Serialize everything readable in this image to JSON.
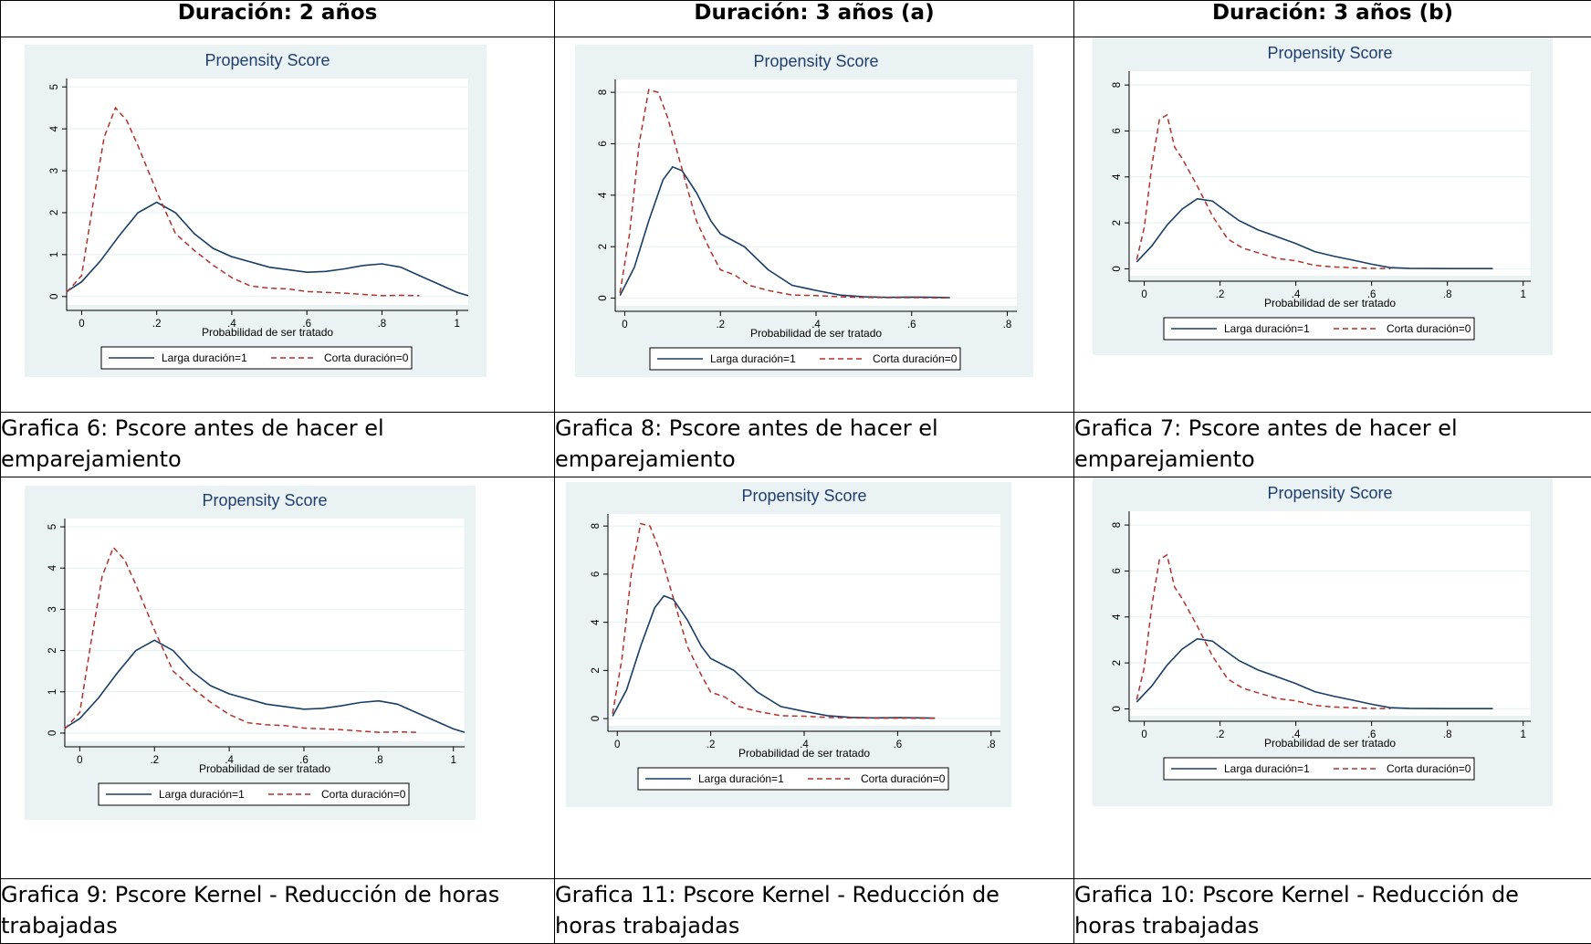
{
  "columns": [
    "Duración: 2 años",
    "Duración: 3 años (a)",
    "Duración: 3 años (b)"
  ],
  "captions": [
    [
      "Grafica 6: Pscore antes de hacer el",
      "emparejamiento"
    ],
    [
      "Grafica 8: Pscore antes de hacer el",
      "emparejamiento"
    ],
    [
      "Grafica 7: Pscore antes de hacer el",
      "emparejamiento"
    ],
    [
      "Grafica 9: Pscore Kernel - Reducción de horas",
      "trabajadas"
    ],
    [
      "Grafica 11: Pscore Kernel - Reducción de",
      "horas trabajadas"
    ],
    [
      "Grafica 10: Pscore Kernel - Reducción de",
      "horas trabajadas"
    ]
  ],
  "colors": {
    "series1": "#1a3d66",
    "series0": "#b0312b",
    "plot_background": "#eaf2f3",
    "title": "#1f3f6e"
  },
  "chart_data": [
    {
      "type": "line",
      "title": "Propensity Score",
      "xlabel": "Probabilidad de ser tratado",
      "ylabel": "",
      "xlim": [
        -0.04,
        1.03
      ],
      "ylim": [
        -0.2,
        5.2
      ],
      "xticks": [
        0,
        0.2,
        0.4,
        0.6,
        0.8,
        1
      ],
      "xtick_labels": [
        "0",
        ".2",
        ".4",
        ".6",
        ".8",
        "1"
      ],
      "yticks": [
        0,
        1,
        2,
        3,
        4,
        5
      ],
      "ytick_labels": [
        "0",
        "1",
        "2",
        "3",
        "4",
        "5"
      ],
      "legend_position": "bottom",
      "series": [
        {
          "name": "Larga duración=1",
          "style": "solid",
          "x": [
            -0.04,
            0,
            0.05,
            0.1,
            0.15,
            0.2,
            0.25,
            0.3,
            0.35,
            0.4,
            0.5,
            0.6,
            0.65,
            0.7,
            0.75,
            0.8,
            0.85,
            0.9,
            0.95,
            1.0,
            1.03
          ],
          "y": [
            0.12,
            0.35,
            0.85,
            1.45,
            2.0,
            2.25,
            2.0,
            1.5,
            1.15,
            0.95,
            0.7,
            0.58,
            0.6,
            0.66,
            0.74,
            0.78,
            0.7,
            0.5,
            0.3,
            0.1,
            0.02
          ]
        },
        {
          "name": "Corta duración=0",
          "style": "dashed",
          "x": [
            -0.04,
            0,
            0.03,
            0.06,
            0.09,
            0.12,
            0.15,
            0.2,
            0.25,
            0.3,
            0.35,
            0.4,
            0.45,
            0.5,
            0.55,
            0.6,
            0.65,
            0.7,
            0.75,
            0.8,
            0.85,
            0.9
          ],
          "y": [
            0.1,
            0.5,
            2.2,
            3.8,
            4.5,
            4.2,
            3.6,
            2.5,
            1.5,
            1.1,
            0.75,
            0.45,
            0.25,
            0.2,
            0.18,
            0.12,
            0.1,
            0.08,
            0.05,
            0.02,
            0.03,
            0.02
          ]
        }
      ]
    },
    {
      "type": "line",
      "title": "Propensity Score",
      "xlabel": "Probabilidad de ser tratado",
      "ylabel": "",
      "xlim": [
        -0.02,
        0.82
      ],
      "ylim": [
        -0.3,
        8.5
      ],
      "xticks": [
        0,
        0.2,
        0.4,
        0.6,
        0.8
      ],
      "xtick_labels": [
        "0",
        ".2",
        ".4",
        ".6",
        ".8"
      ],
      "yticks": [
        0,
        2,
        4,
        6,
        8
      ],
      "ytick_labels": [
        "0",
        "2",
        "4",
        "6",
        "8"
      ],
      "legend_position": "bottom",
      "series": [
        {
          "name": "Larga duración=1",
          "style": "solid",
          "x": [
            -0.01,
            0.02,
            0.05,
            0.08,
            0.1,
            0.12,
            0.15,
            0.18,
            0.2,
            0.25,
            0.3,
            0.35,
            0.4,
            0.45,
            0.5,
            0.55,
            0.6,
            0.65,
            0.68
          ],
          "y": [
            0.1,
            1.2,
            3.0,
            4.6,
            5.1,
            4.95,
            4.1,
            3.0,
            2.5,
            2.0,
            1.1,
            0.5,
            0.3,
            0.12,
            0.05,
            0.03,
            0.04,
            0.03,
            0.02
          ]
        },
        {
          "name": "Corta duración=0",
          "style": "dashed",
          "x": [
            -0.01,
            0.01,
            0.03,
            0.05,
            0.07,
            0.09,
            0.12,
            0.15,
            0.18,
            0.2,
            0.23,
            0.26,
            0.3,
            0.35,
            0.4,
            0.45,
            0.5,
            0.55,
            0.6,
            0.68
          ],
          "y": [
            0.2,
            2.5,
            6.0,
            8.1,
            8.0,
            7.0,
            5.0,
            3.0,
            1.8,
            1.1,
            0.9,
            0.5,
            0.3,
            0.12,
            0.1,
            0.05,
            0.03,
            0.02,
            0.02,
            0.01
          ]
        }
      ]
    },
    {
      "type": "line",
      "title": "Propensity Score",
      "xlabel": "Probabilidad de ser tratado",
      "ylabel": "",
      "xlim": [
        -0.04,
        1.02
      ],
      "ylim": [
        -0.3,
        8.6
      ],
      "xticks": [
        0,
        0.2,
        0.4,
        0.6,
        0.8,
        1
      ],
      "xtick_labels": [
        "0",
        ".2",
        ".4",
        ".6",
        ".8",
        "1"
      ],
      "yticks": [
        0,
        2,
        4,
        6,
        8
      ],
      "ytick_labels": [
        "0",
        "2",
        "4",
        "6",
        "8"
      ],
      "legend_position": "bottom",
      "series": [
        {
          "name": "Larga duración=1",
          "style": "solid",
          "x": [
            -0.02,
            0.02,
            0.06,
            0.1,
            0.14,
            0.18,
            0.2,
            0.25,
            0.3,
            0.35,
            0.4,
            0.45,
            0.5,
            0.55,
            0.6,
            0.65,
            0.7,
            0.8,
            0.92
          ],
          "y": [
            0.3,
            1.0,
            1.9,
            2.6,
            3.05,
            2.95,
            2.7,
            2.1,
            1.7,
            1.4,
            1.1,
            0.75,
            0.55,
            0.38,
            0.2,
            0.05,
            0.02,
            0.01,
            0.01
          ]
        },
        {
          "name": "Corta duración=0",
          "style": "dashed",
          "x": [
            -0.02,
            0.0,
            0.02,
            0.04,
            0.06,
            0.08,
            0.1,
            0.14,
            0.18,
            0.22,
            0.26,
            0.3,
            0.35,
            0.4,
            0.45,
            0.5,
            0.55,
            0.6,
            0.65
          ],
          "y": [
            0.4,
            1.8,
            4.5,
            6.5,
            6.7,
            5.3,
            4.8,
            3.6,
            2.3,
            1.3,
            0.9,
            0.7,
            0.45,
            0.35,
            0.15,
            0.08,
            0.05,
            0.02,
            0.01
          ]
        }
      ]
    },
    {
      "type": "line",
      "title": "Propensity Score",
      "xlabel": "Probabilidad de ser tratado",
      "ylabel": "",
      "xlim": [
        -0.04,
        1.03
      ],
      "ylim": [
        -0.2,
        5.2
      ],
      "xticks": [
        0,
        0.2,
        0.4,
        0.6,
        0.8,
        1
      ],
      "xtick_labels": [
        "0",
        ".2",
        ".4",
        ".6",
        ".8",
        "1"
      ],
      "yticks": [
        0,
        1,
        2,
        3,
        4,
        5
      ],
      "ytick_labels": [
        "0",
        "1",
        "2",
        "3",
        "4",
        "5"
      ],
      "legend_position": "bottom",
      "series": [
        {
          "name": "Larga duración=1",
          "style": "solid",
          "x": [
            -0.04,
            0,
            0.05,
            0.1,
            0.15,
            0.2,
            0.25,
            0.3,
            0.35,
            0.4,
            0.5,
            0.6,
            0.65,
            0.7,
            0.75,
            0.8,
            0.85,
            0.9,
            0.95,
            1.0,
            1.03
          ],
          "y": [
            0.12,
            0.35,
            0.85,
            1.45,
            2.0,
            2.25,
            2.0,
            1.5,
            1.15,
            0.95,
            0.7,
            0.58,
            0.6,
            0.66,
            0.74,
            0.78,
            0.7,
            0.5,
            0.3,
            0.1,
            0.02
          ]
        },
        {
          "name": "Corta duración=0",
          "style": "dashed",
          "x": [
            -0.04,
            0,
            0.03,
            0.06,
            0.09,
            0.12,
            0.15,
            0.2,
            0.25,
            0.3,
            0.35,
            0.4,
            0.45,
            0.5,
            0.55,
            0.6,
            0.65,
            0.7,
            0.75,
            0.8,
            0.85,
            0.9
          ],
          "y": [
            0.1,
            0.5,
            2.2,
            3.8,
            4.5,
            4.2,
            3.6,
            2.5,
            1.5,
            1.1,
            0.75,
            0.45,
            0.25,
            0.2,
            0.18,
            0.12,
            0.1,
            0.08,
            0.05,
            0.02,
            0.03,
            0.02
          ]
        }
      ]
    },
    {
      "type": "line",
      "title": "Propensity Score",
      "xlabel": "Probabilidad de ser tratado",
      "ylabel": "",
      "xlim": [
        -0.02,
        0.82
      ],
      "ylim": [
        -0.3,
        8.5
      ],
      "xticks": [
        0,
        0.2,
        0.4,
        0.6,
        0.8
      ],
      "xtick_labels": [
        "0",
        ".2",
        ".4",
        ".6",
        ".8"
      ],
      "yticks": [
        0,
        2,
        4,
        6,
        8
      ],
      "ytick_labels": [
        "0",
        "2",
        "4",
        "6",
        "8"
      ],
      "legend_position": "bottom",
      "series": [
        {
          "name": "Larga duración=1",
          "style": "solid",
          "x": [
            -0.01,
            0.02,
            0.05,
            0.08,
            0.1,
            0.12,
            0.15,
            0.18,
            0.2,
            0.25,
            0.3,
            0.35,
            0.4,
            0.45,
            0.5,
            0.55,
            0.6,
            0.65,
            0.68
          ],
          "y": [
            0.1,
            1.2,
            3.0,
            4.6,
            5.1,
            4.95,
            4.1,
            3.0,
            2.5,
            2.0,
            1.1,
            0.5,
            0.3,
            0.12,
            0.05,
            0.03,
            0.04,
            0.03,
            0.02
          ]
        },
        {
          "name": "Corta duración=0",
          "style": "dashed",
          "x": [
            -0.01,
            0.01,
            0.03,
            0.05,
            0.07,
            0.09,
            0.12,
            0.15,
            0.18,
            0.2,
            0.23,
            0.26,
            0.3,
            0.35,
            0.4,
            0.45,
            0.5,
            0.55,
            0.6,
            0.68
          ],
          "y": [
            0.2,
            2.5,
            6.0,
            8.1,
            8.0,
            7.0,
            5.0,
            3.0,
            1.8,
            1.1,
            0.9,
            0.5,
            0.3,
            0.12,
            0.1,
            0.05,
            0.03,
            0.02,
            0.02,
            0.01
          ]
        }
      ]
    },
    {
      "type": "line",
      "title": "Propensity Score",
      "xlabel": "Probabilidad de ser tratado",
      "ylabel": "",
      "xlim": [
        -0.04,
        1.02
      ],
      "ylim": [
        -0.3,
        8.6
      ],
      "xticks": [
        0,
        0.2,
        0.4,
        0.6,
        0.8,
        1
      ],
      "xtick_labels": [
        "0",
        ".2",
        ".4",
        ".6",
        ".8",
        "1"
      ],
      "yticks": [
        0,
        2,
        4,
        6,
        8
      ],
      "ytick_labels": [
        "0",
        "2",
        "4",
        "6",
        "8"
      ],
      "legend_position": "bottom",
      "series": [
        {
          "name": "Larga duración=1",
          "style": "solid",
          "x": [
            -0.02,
            0.02,
            0.06,
            0.1,
            0.14,
            0.18,
            0.2,
            0.25,
            0.3,
            0.35,
            0.4,
            0.45,
            0.5,
            0.55,
            0.6,
            0.65,
            0.7,
            0.8,
            0.92
          ],
          "y": [
            0.3,
            1.0,
            1.9,
            2.6,
            3.05,
            2.95,
            2.7,
            2.1,
            1.7,
            1.4,
            1.1,
            0.75,
            0.55,
            0.38,
            0.2,
            0.05,
            0.02,
            0.01,
            0.01
          ]
        },
        {
          "name": "Corta duración=0",
          "style": "dashed",
          "x": [
            -0.02,
            0.0,
            0.02,
            0.04,
            0.06,
            0.08,
            0.1,
            0.14,
            0.18,
            0.22,
            0.26,
            0.3,
            0.35,
            0.4,
            0.45,
            0.5,
            0.55,
            0.6,
            0.65
          ],
          "y": [
            0.4,
            1.8,
            4.5,
            6.5,
            6.7,
            5.3,
            4.8,
            3.6,
            2.3,
            1.3,
            0.9,
            0.7,
            0.45,
            0.35,
            0.15,
            0.08,
            0.05,
            0.02,
            0.01
          ]
        }
      ]
    }
  ]
}
